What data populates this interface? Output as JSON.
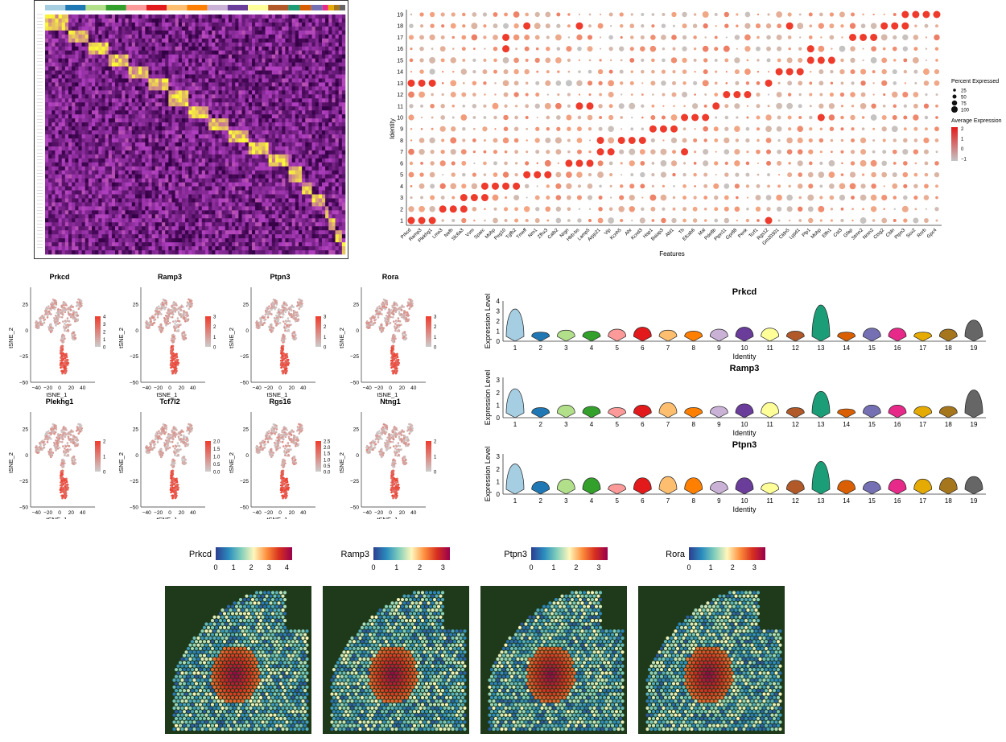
{
  "palette": {
    "clusters": [
      "#a6cee3",
      "#1f78b4",
      "#b2df8a",
      "#33a02c",
      "#fb9a99",
      "#e31a1c",
      "#fdbf6f",
      "#ff7f00",
      "#cab2d6",
      "#6a3d9a",
      "#ffff99",
      "#b15928",
      "#1b9e77",
      "#d95f02",
      "#7570b3",
      "#e7298a",
      "#e6ab02",
      "#a6761d",
      "#666666"
    ],
    "tsne_scale": [
      "#cccccc",
      "#ef3b2c"
    ],
    "heatmap": [
      "#330044",
      "#b03fbf",
      "#ffff33"
    ],
    "spatial": [
      "#2c3e91",
      "#2b8cbe",
      "#7fcdbb",
      "#fff7bc",
      "#fd8d3c",
      "#d7301f",
      "#99004d"
    ],
    "tissue_bg": "#1f3a1a"
  },
  "chart_data": [
    {
      "type": "heatmap",
      "panel": "A",
      "n_clusters": 19,
      "title": "",
      "xlabel": "",
      "ylabel": ""
    },
    {
      "type": "scatter",
      "panel": "B",
      "title": "",
      "xlabel": "Features",
      "ylabel": "Identity",
      "identities": [
        "1",
        "2",
        "3",
        "4",
        "5",
        "6",
        "7",
        "8",
        "9",
        "10",
        "11",
        "12",
        "13",
        "14",
        "15",
        "16",
        "17",
        "18",
        "19"
      ],
      "features": [
        "Prkcd",
        "Ramp3",
        "Plekhg1",
        "Lmo3",
        "Nefh",
        "Slc6a3",
        "Vvm",
        "Sparc",
        "Mobp",
        "Peg10",
        "Tgfb2",
        "Tmeff",
        "Nrn1",
        "Zfhx3",
        "Calb2",
        "Nrgn",
        "Hbb-bs",
        "Lamp5",
        "Arpp21",
        "Vip",
        "Kcnh5",
        "Ahr",
        "Kcnd3",
        "Hap1",
        "Baiap3",
        "Abl1",
        "Th",
        "Efcab6",
        "Mal",
        "Pde8b",
        "Ptpn11",
        "Gpr88",
        "Penk",
        "Tcrf1",
        "Rgs12",
        "Gm20301",
        "Cldn5",
        "Lypd1",
        "Plp1",
        "Mobp",
        "Elfn1",
        "Cst3",
        "Gfap",
        "Stmn2",
        "Nrsn2",
        "Ctsg2",
        "Cbln",
        "Ptpn3",
        "Sox2",
        "Rorb",
        "Gpc4"
      ],
      "percent_legend": {
        "title": "Percent Expressed",
        "labels": [
          "25",
          "50",
          "75",
          "100"
        ],
        "values": [
          25,
          50,
          75,
          100
        ]
      },
      "avg_legend": {
        "title": "Average Expression",
        "labels": [
          "2",
          "1",
          "0",
          "−1"
        ],
        "range": [
          -1,
          2
        ]
      },
      "highlight": [
        {
          "identity": 19,
          "features": [
            47,
            48,
            49,
            50
          ]
        },
        {
          "identity": 18,
          "features": [
            11,
            16,
            36,
            45,
            46,
            47
          ]
        },
        {
          "identity": 17,
          "features": [
            9,
            42,
            43,
            44
          ]
        },
        {
          "identity": 16,
          "features": [
            9,
            38
          ]
        },
        {
          "identity": 15,
          "features": [
            38,
            39,
            40
          ]
        },
        {
          "identity": 14,
          "features": [
            35,
            36,
            37
          ]
        },
        {
          "identity": 13,
          "features": [
            0,
            1,
            2,
            34
          ]
        },
        {
          "identity": 12,
          "features": [
            30,
            31,
            32
          ]
        },
        {
          "identity": 11,
          "features": [
            16,
            17,
            29
          ]
        },
        {
          "identity": 10,
          "features": [
            26,
            27,
            28,
            39
          ]
        },
        {
          "identity": 9,
          "features": [
            23,
            24,
            25
          ]
        },
        {
          "identity": 8,
          "features": [
            18,
            20,
            21,
            22
          ]
        },
        {
          "identity": 7,
          "features": [
            18,
            19,
            26
          ]
        },
        {
          "identity": 6,
          "features": [
            15,
            16,
            17
          ]
        },
        {
          "identity": 5,
          "features": [
            11,
            12,
            13
          ]
        },
        {
          "identity": 4,
          "features": [
            7,
            8,
            9,
            10
          ]
        },
        {
          "identity": 3,
          "features": [
            5,
            6,
            7
          ]
        },
        {
          "identity": 2,
          "features": [
            3,
            4,
            5
          ]
        },
        {
          "identity": 1,
          "features": [
            0,
            1,
            2,
            34
          ]
        }
      ]
    },
    {
      "type": "scatter",
      "panel": "C",
      "xlabel": "tSNE_1",
      "ylabel": "tSNE_2",
      "xticks": [
        "−40",
        "−20",
        "0",
        "20",
        "40"
      ],
      "yticks": [
        "25",
        "0",
        "−25",
        "−50"
      ],
      "genes": [
        {
          "name": "Prkcd",
          "legend": [
            "4",
            "3",
            "2",
            "1",
            "0"
          ]
        },
        {
          "name": "Ramp3",
          "legend": [
            "3",
            "2",
            "1",
            "0"
          ]
        },
        {
          "name": "Ptpn3",
          "legend": [
            "3",
            "2",
            "1",
            "0"
          ]
        },
        {
          "name": "Rora",
          "legend": [
            "3",
            "2",
            "1",
            "0"
          ]
        },
        {
          "name": "Plekhg1",
          "legend": [
            "2",
            "1",
            "0"
          ]
        },
        {
          "name": "Tcf7l2",
          "legend": [
            "2.0",
            "1.5",
            "1.0",
            "0.5",
            "0.0"
          ]
        },
        {
          "name": "Rgs16",
          "legend": [
            "2.5",
            "2.0",
            "1.5",
            "1.0",
            "0.5",
            "0.0"
          ]
        },
        {
          "name": "Ntng1",
          "legend": [
            "2",
            "1",
            "0"
          ]
        }
      ]
    },
    {
      "type": "area",
      "panel": "D",
      "xlabel": "Identity",
      "ylabel": "Expression Level",
      "categories": [
        "1",
        "2",
        "3",
        "4",
        "5",
        "6",
        "7",
        "8",
        "9",
        "10",
        "11",
        "12",
        "13",
        "14",
        "15",
        "16",
        "17",
        "18",
        "19"
      ],
      "plots": [
        {
          "gene": "Prkcd",
          "yticks": [
            "0",
            "1",
            "2",
            "3",
            "4"
          ],
          "ymax": 4,
          "values": [
            3.2,
            0.9,
            1.1,
            1.0,
            1.2,
            1.4,
            1.1,
            1.0,
            1.2,
            1.4,
            1.3,
            1.0,
            3.6,
            0.9,
            1.3,
            1.3,
            0.9,
            1.2,
            2.1
          ]
        },
        {
          "gene": "Ramp3",
          "yticks": [
            "0",
            "1",
            "2",
            "3"
          ],
          "ymax": 3.2,
          "values": [
            2.3,
            0.8,
            1.0,
            0.9,
            0.8,
            1.0,
            1.2,
            0.8,
            0.9,
            1.1,
            1.2,
            0.8,
            2.1,
            0.7,
            1.0,
            1.0,
            0.9,
            0.9,
            2.2
          ]
        },
        {
          "gene": "Ptpn3",
          "yticks": [
            "0",
            "1",
            "2",
            "3"
          ],
          "ymax": 3.2,
          "values": [
            2.4,
            1.0,
            1.2,
            1.3,
            0.8,
            1.3,
            1.4,
            1.3,
            1.0,
            1.3,
            0.9,
            1.1,
            2.6,
            1.1,
            1.0,
            1.2,
            1.2,
            1.3,
            1.4
          ]
        }
      ]
    },
    {
      "type": "heatmap",
      "panel": "E",
      "maps": [
        {
          "gene": "Prkcd",
          "ticks": [
            "0",
            "1",
            "2",
            "3",
            "4"
          ],
          "vmax": 4.3
        },
        {
          "gene": "Ramp3",
          "ticks": [
            "0",
            "1",
            "2",
            "3"
          ],
          "vmax": 3.3
        },
        {
          "gene": "Ptpn3",
          "ticks": [
            "0",
            "1",
            "2",
            "3"
          ],
          "vmax": 3.4
        },
        {
          "gene": "Rora",
          "ticks": [
            "0",
            "1",
            "2",
            "3"
          ],
          "vmax": 3.5
        }
      ]
    }
  ]
}
